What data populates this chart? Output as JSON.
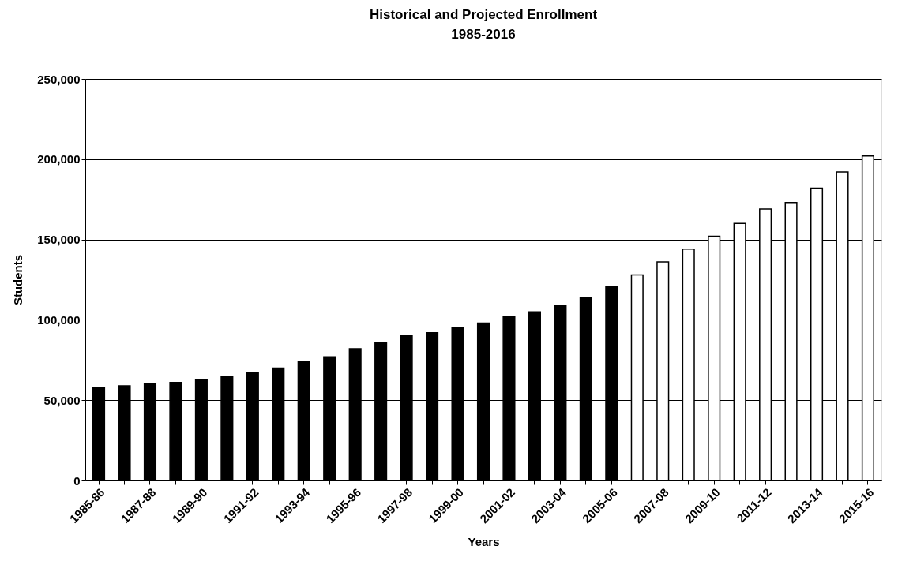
{
  "chart_data": {
    "type": "bar",
    "title": "Historical and Projected Enrollment",
    "subtitle": "1985-2016",
    "xlabel": "Years",
    "ylabel": "Students",
    "categories": [
      "1985-86",
      null,
      "1987-88",
      null,
      "1989-90",
      null,
      "1991-92",
      null,
      "1993-94",
      null,
      "1995-96",
      null,
      "1997-98",
      null,
      "1999-00",
      null,
      "2001-02",
      null,
      "2003-04",
      null,
      "2005-06",
      null,
      "2007-08",
      null,
      "2009-10",
      null,
      "2011-12",
      null,
      "2013-14",
      null,
      "2015-16"
    ],
    "series": [
      {
        "color": "#000000",
        "values": [
          58000,
          59000,
          60000,
          61000,
          63000,
          65000,
          67000,
          70000,
          74000,
          77000,
          82000,
          86000,
          90000,
          92000,
          95000,
          98000,
          102000,
          105000,
          109000,
          114000,
          121000,
          null,
          null,
          null,
          null,
          null,
          null,
          null,
          null,
          null,
          null
        ]
      },
      {
        "color": "#ffffff",
        "values": [
          null,
          null,
          null,
          null,
          null,
          null,
          null,
          null,
          null,
          null,
          null,
          null,
          null,
          null,
          null,
          null,
          null,
          null,
          null,
          null,
          null,
          128000,
          136000,
          144000,
          152000,
          160000,
          169000,
          173000,
          182000,
          192000,
          202000
        ]
      }
    ],
    "ylim": [
      0,
      250000
    ],
    "yticks": [
      0,
      {
        "value": 50000,
        "label": "50,000"
      },
      {
        "value": 100000,
        "label": "100,000"
      },
      {
        "value": 150000,
        "label": "150,000"
      },
      {
        "value": 200000,
        "label": "200,000"
      },
      {
        "value": 250000,
        "label": "250,000"
      }
    ],
    "grid": "y",
    "legend": false
  }
}
